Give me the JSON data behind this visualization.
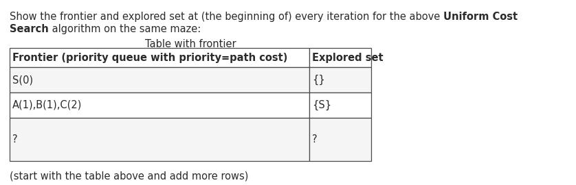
{
  "para_line1_normal": "Show the frontier and explored set at (the beginning of) every iteration for the above ",
  "para_line1_bold": "Uniform Cost",
  "para_line2_bold": "Search",
  "para_line2_normal": " algorithm on the same maze:",
  "table_title": "Table with frontier",
  "col_headers": [
    "Frontier (priority queue with priority=path cost)",
    "Explored set"
  ],
  "rows": [
    [
      "S(0)",
      "{}"
    ],
    [
      "A(1),B(1),C(2)",
      "{S}"
    ],
    [
      "?",
      "?"
    ]
  ],
  "footer_text": "(start with the table above and add more rows)",
  "bg_color": "#ffffff",
  "text_color": "#2b2b2b",
  "border_color": "#4a4a4a",
  "font_size": 10.5,
  "table_title_fontsize": 10.5,
  "row_bg_odd": "#f5f5f5",
  "row_bg_even": "#ffffff",
  "header_bg": "#ffffff"
}
